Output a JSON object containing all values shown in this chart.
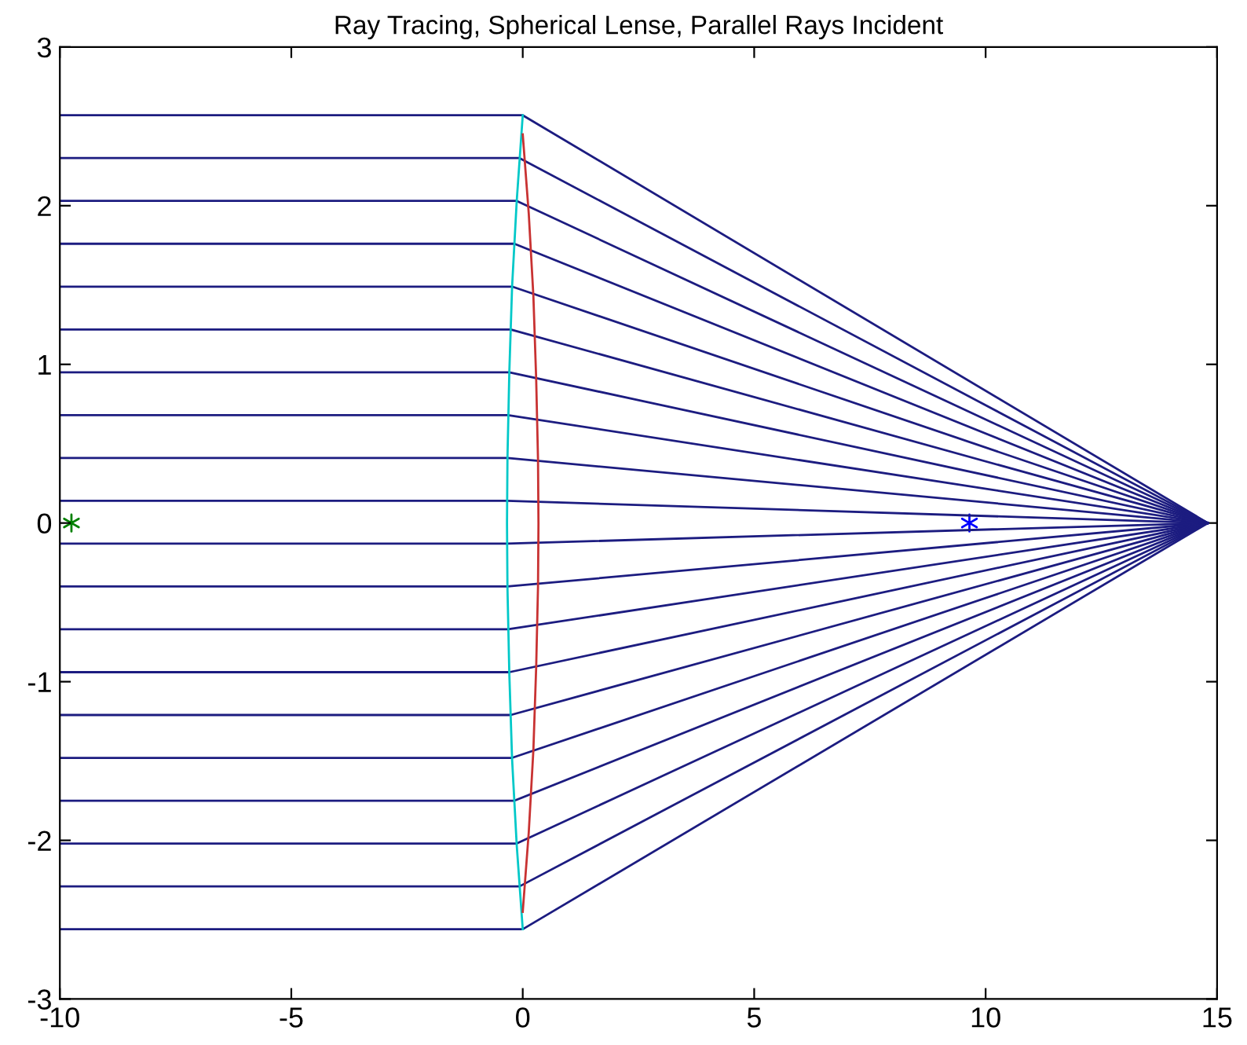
{
  "chart_data": {
    "type": "line",
    "title": "Ray Tracing, Spherical Lense, Parallel Rays Incident",
    "xlim": [
      -10,
      15
    ],
    "xticks": [
      -10,
      -5,
      0,
      5,
      10,
      15
    ],
    "ylim": [
      -3,
      3
    ],
    "yticks": [
      -3,
      -2,
      -1,
      0,
      1,
      2,
      3
    ],
    "grid": false,
    "legend": false,
    "line_style": "solid",
    "series": [
      {
        "color": "#1c1c80",
        "x": [
          -10,
          0,
          14.8
        ],
        "values": [
          2.57,
          2.57,
          0
        ]
      },
      {
        "color": "#1c1c80",
        "x": [
          -10,
          -0.07,
          14.8
        ],
        "values": [
          2.3,
          2.3,
          0
        ]
      },
      {
        "color": "#1c1c80",
        "x": [
          -10,
          -0.13,
          14.8
        ],
        "values": [
          2.03,
          2.03,
          0
        ]
      },
      {
        "color": "#1c1c80",
        "x": [
          -10,
          -0.18,
          14.8
        ],
        "values": [
          1.76,
          1.76,
          0
        ]
      },
      {
        "color": "#1c1c80",
        "x": [
          -10,
          -0.23,
          14.8
        ],
        "values": [
          1.49,
          1.49,
          0
        ]
      },
      {
        "color": "#1c1c80",
        "x": [
          -10,
          -0.26,
          14.8
        ],
        "values": [
          1.22,
          1.22,
          0
        ]
      },
      {
        "color": "#1c1c80",
        "x": [
          -10,
          -0.29,
          14.8
        ],
        "values": [
          0.95,
          0.95,
          0
        ]
      },
      {
        "color": "#1c1c80",
        "x": [
          -10,
          -0.32,
          14.8
        ],
        "values": [
          0.68,
          0.68,
          0
        ]
      },
      {
        "color": "#1c1c80",
        "x": [
          -10,
          -0.33,
          14.8
        ],
        "values": [
          0.41,
          0.41,
          0
        ]
      },
      {
        "color": "#1c1c80",
        "x": [
          -10,
          -0.34,
          14.8
        ],
        "values": [
          0.14,
          0.14,
          0
        ]
      },
      {
        "color": "#1c1c80",
        "x": [
          -10,
          -0.34,
          14.8
        ],
        "values": [
          -0.13,
          -0.13,
          0
        ]
      },
      {
        "color": "#1c1c80",
        "x": [
          -10,
          -0.33,
          14.8
        ],
        "values": [
          -0.4,
          -0.4,
          0
        ]
      },
      {
        "color": "#1c1c80",
        "x": [
          -10,
          -0.32,
          14.8
        ],
        "values": [
          -0.67,
          -0.67,
          0
        ]
      },
      {
        "color": "#1c1c80",
        "x": [
          -10,
          -0.29,
          14.8
        ],
        "values": [
          -0.94,
          -0.94,
          0
        ]
      },
      {
        "color": "#1c1c80",
        "x": [
          -10,
          -0.26,
          14.8
        ],
        "values": [
          -1.21,
          -1.21,
          0
        ]
      },
      {
        "color": "#1c1c80",
        "x": [
          -10,
          -0.23,
          14.8
        ],
        "values": [
          -1.48,
          -1.48,
          0
        ]
      },
      {
        "color": "#1c1c80",
        "x": [
          -10,
          -0.18,
          14.8
        ],
        "values": [
          -1.75,
          -1.75,
          0
        ]
      },
      {
        "color": "#1c1c80",
        "x": [
          -10,
          -0.13,
          14.8
        ],
        "values": [
          -2.02,
          -2.02,
          0
        ]
      },
      {
        "color": "#1c1c80",
        "x": [
          -10,
          -0.07,
          14.8
        ],
        "values": [
          -2.29,
          -2.29,
          0
        ]
      },
      {
        "color": "#1c1c80",
        "x": [
          -10,
          0,
          14.8
        ],
        "values": [
          -2.56,
          -2.56,
          0
        ]
      },
      {
        "color": "#00c8c8",
        "x": [
          0,
          -0.13,
          -0.23,
          -0.29,
          -0.33,
          -0.34,
          -0.33,
          -0.29,
          -0.23,
          -0.13,
          0
        ],
        "values": [
          2.57,
          2.03,
          1.49,
          0.95,
          0.41,
          0,
          -0.41,
          -0.95,
          -1.49,
          -2.03,
          -2.56
        ]
      },
      {
        "color": "#c83232",
        "x": [
          0,
          0.13,
          0.23,
          0.29,
          0.33,
          0.34,
          0.33,
          0.29,
          0.23,
          0.13,
          0
        ],
        "values": [
          2.45,
          1.95,
          1.43,
          0.91,
          0.4,
          0,
          -0.4,
          -0.91,
          -1.43,
          -1.95,
          -2.45
        ]
      },
      {
        "type": "scatter",
        "marker": "cross",
        "color": "#008000",
        "x": [
          -9.75
        ],
        "values": [
          0
        ]
      },
      {
        "type": "scatter",
        "marker": "cross",
        "color": "#0000ff",
        "x": [
          9.65
        ],
        "values": [
          0
        ]
      }
    ]
  }
}
